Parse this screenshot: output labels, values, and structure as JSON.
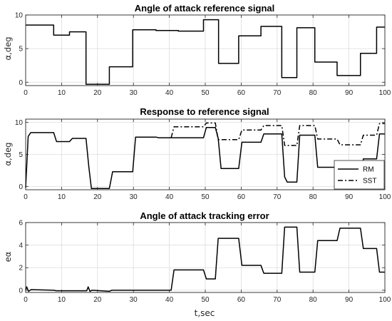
{
  "chart_data": [
    {
      "type": "line",
      "title": "Angle of attack reference signal",
      "xlabel": "",
      "ylabel": "α,deg",
      "xlim": [
        0,
        100
      ],
      "ylim": [
        -0.5,
        10
      ],
      "xticks": [
        0,
        10,
        20,
        30,
        40,
        50,
        60,
        70,
        80,
        90,
        100
      ],
      "yticks": [
        0,
        5,
        10
      ],
      "grid": true,
      "legend": null,
      "series": [
        {
          "style": "step",
          "points": [
            [
              0,
              8.5
            ],
            [
              7.8,
              8.5
            ],
            [
              7.8,
              7.0
            ],
            [
              12.2,
              7.0
            ],
            [
              12.2,
              7.5
            ],
            [
              16.8,
              7.5
            ],
            [
              16.8,
              -0.3
            ],
            [
              23.3,
              -0.3
            ],
            [
              23.3,
              2.3
            ],
            [
              29.8,
              2.3
            ],
            [
              29.8,
              7.8
            ],
            [
              36.3,
              7.8
            ],
            [
              36.3,
              7.7
            ],
            [
              42.5,
              7.7
            ],
            [
              42.5,
              7.6
            ],
            [
              49.5,
              7.6
            ],
            [
              49.5,
              9.3
            ],
            [
              53.7,
              9.3
            ],
            [
              53.7,
              2.8
            ],
            [
              59.3,
              2.8
            ],
            [
              59.3,
              6.9
            ],
            [
              65.5,
              6.9
            ],
            [
              65.5,
              8.3
            ],
            [
              71.3,
              8.3
            ],
            [
              71.3,
              0.7
            ],
            [
              75.5,
              0.7
            ],
            [
              75.5,
              8.1
            ],
            [
              80.5,
              8.1
            ],
            [
              80.5,
              3.0
            ],
            [
              86.7,
              3.0
            ],
            [
              86.7,
              1.0
            ],
            [
              93.2,
              1.0
            ],
            [
              93.2,
              4.3
            ],
            [
              97.7,
              4.3
            ],
            [
              97.7,
              8.2
            ],
            [
              100,
              8.2
            ]
          ]
        }
      ]
    },
    {
      "type": "line",
      "title": "Response to reference signal",
      "xlabel": "",
      "ylabel": "α,deg",
      "xlim": [
        0,
        100
      ],
      "ylim": [
        -0.5,
        10.5
      ],
      "xticks": [
        0,
        10,
        20,
        30,
        40,
        50,
        60,
        70,
        80,
        90,
        100
      ],
      "yticks": [
        0,
        5,
        10
      ],
      "grid": true,
      "legend": "bottom-right",
      "series": [
        {
          "name": "RM",
          "line": "solid",
          "points": [
            [
              0,
              -0.2
            ],
            [
              0.7,
              7.8
            ],
            [
              1.4,
              8.4
            ],
            [
              7.8,
              8.4
            ],
            [
              8.6,
              7.0
            ],
            [
              12.2,
              7.0
            ],
            [
              13.0,
              7.5
            ],
            [
              16.8,
              7.5
            ],
            [
              17.6,
              3.0
            ],
            [
              18.3,
              -0.3
            ],
            [
              23.3,
              -0.3
            ],
            [
              24.2,
              2.3
            ],
            [
              29.8,
              2.3
            ],
            [
              30.6,
              7.7
            ],
            [
              36.3,
              7.7
            ],
            [
              37.1,
              7.6
            ],
            [
              49.5,
              7.6
            ],
            [
              50.3,
              9.2
            ],
            [
              52.8,
              9.2
            ],
            [
              53.6,
              7.5
            ],
            [
              54.4,
              2.8
            ],
            [
              59.3,
              2.8
            ],
            [
              60.2,
              6.9
            ],
            [
              65.5,
              6.9
            ],
            [
              66.3,
              8.2
            ],
            [
              71.3,
              8.2
            ],
            [
              72.1,
              1.5
            ],
            [
              72.8,
              0.7
            ],
            [
              75.5,
              0.7
            ],
            [
              76.3,
              8.0
            ],
            [
              80.5,
              8.0
            ],
            [
              81.3,
              3.0
            ],
            [
              86.7,
              3.0
            ],
            [
              87.5,
              1.0
            ],
            [
              93.2,
              1.0
            ],
            [
              94.0,
              4.3
            ],
            [
              97.7,
              4.3
            ],
            [
              98.5,
              8.2
            ],
            [
              100,
              8.2
            ]
          ]
        },
        {
          "name": "SST",
          "line": "dashdot",
          "points": [
            [
              40.5,
              7.6
            ],
            [
              41.3,
              9.3
            ],
            [
              49.5,
              9.3
            ],
            [
              50.3,
              9.9
            ],
            [
              52.8,
              9.9
            ],
            [
              53.6,
              7.3
            ],
            [
              59.3,
              7.3
            ],
            [
              60.2,
              8.8
            ],
            [
              65.5,
              8.8
            ],
            [
              66.3,
              9.5
            ],
            [
              71.3,
              9.5
            ],
            [
              72.1,
              6.4
            ],
            [
              75.5,
              6.4
            ],
            [
              76.3,
              9.5
            ],
            [
              80.5,
              9.5
            ],
            [
              81.3,
              7.4
            ],
            [
              86.7,
              7.4
            ],
            [
              87.5,
              6.5
            ],
            [
              93.2,
              6.5
            ],
            [
              94.0,
              8.0
            ],
            [
              97.7,
              8.0
            ],
            [
              98.5,
              9.8
            ],
            [
              100,
              9.8
            ]
          ]
        }
      ]
    },
    {
      "type": "line",
      "title": "Angle of attack tracking error",
      "xlabel": "t,sec",
      "ylabel": "eα",
      "xlim": [
        0,
        100
      ],
      "ylim": [
        -0.2,
        6
      ],
      "xticks": [
        0,
        10,
        20,
        30,
        40,
        50,
        60,
        70,
        80,
        90,
        100
      ],
      "yticks": [
        0,
        2,
        4,
        6
      ],
      "grid": true,
      "legend": null,
      "series": [
        {
          "points": [
            [
              0,
              0.0
            ],
            [
              0.3,
              0.3
            ],
            [
              0.8,
              -0.1
            ],
            [
              1.5,
              0.05
            ],
            [
              7.8,
              0.0
            ],
            [
              8.5,
              -0.05
            ],
            [
              17.0,
              -0.05
            ],
            [
              17.4,
              0.3
            ],
            [
              17.9,
              -0.1
            ],
            [
              18.5,
              0.0
            ],
            [
              23.3,
              -0.1
            ],
            [
              24.0,
              0.0
            ],
            [
              40.5,
              0.0
            ],
            [
              41.3,
              1.8
            ],
            [
              49.5,
              1.8
            ],
            [
              50.3,
              1.0
            ],
            [
              52.8,
              1.0
            ],
            [
              53.6,
              4.6
            ],
            [
              59.3,
              4.6
            ],
            [
              60.2,
              2.2
            ],
            [
              65.5,
              2.2
            ],
            [
              66.3,
              1.5
            ],
            [
              71.3,
              1.5
            ],
            [
              72.1,
              5.6
            ],
            [
              75.5,
              5.6
            ],
            [
              76.3,
              1.6
            ],
            [
              80.5,
              1.6
            ],
            [
              81.3,
              4.4
            ],
            [
              86.7,
              4.4
            ],
            [
              87.5,
              5.5
            ],
            [
              93.2,
              5.5
            ],
            [
              94.0,
              3.7
            ],
            [
              97.7,
              3.7
            ],
            [
              98.5,
              1.6
            ],
            [
              100,
              1.6
            ]
          ]
        }
      ]
    }
  ]
}
